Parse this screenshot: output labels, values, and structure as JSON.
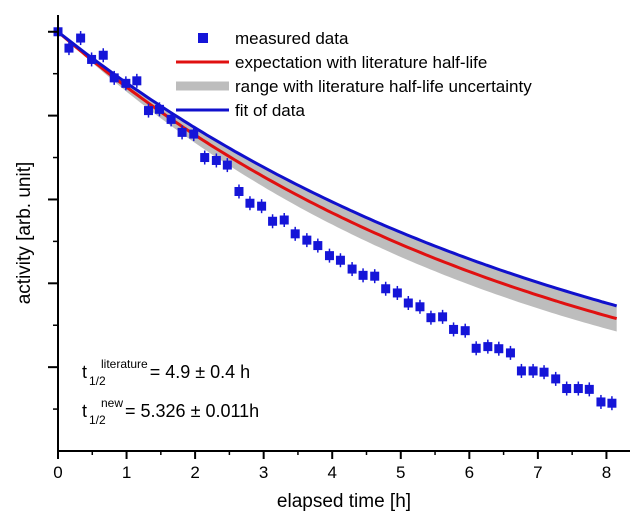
{
  "chart_data": {
    "type": "scatter",
    "title": "",
    "xlabel": "elapsed time [h]",
    "ylabel": "activity [arb. unit]",
    "xlim": [
      0,
      8.3
    ],
    "ylim": [
      0,
      1.04
    ],
    "xticks": [
      "0",
      "1",
      "2",
      "3",
      "4",
      "5",
      "6",
      "7",
      "8"
    ],
    "y_tick_labels_shown": false,
    "grid": false,
    "legend_position": "top-right",
    "series": [
      {
        "name": "measured data",
        "kind": "markers",
        "color": "#1515d8",
        "x": [
          0.0,
          0.16,
          0.33,
          0.49,
          0.66,
          0.82,
          0.99,
          1.15,
          1.32,
          1.48,
          1.65,
          1.81,
          1.98,
          2.14,
          2.31,
          2.47,
          2.64,
          2.8,
          2.97,
          3.13,
          3.3,
          3.46,
          3.63,
          3.79,
          3.96,
          4.12,
          4.29,
          4.45,
          4.62,
          4.78,
          4.95,
          5.11,
          5.28,
          5.44,
          5.61,
          5.77,
          5.94,
          6.1,
          6.27,
          6.43,
          6.6,
          6.76,
          6.93,
          7.09,
          7.26,
          7.42,
          7.59,
          7.75,
          7.92,
          8.08
        ],
        "y": [
          1.0,
          0.961,
          0.985,
          0.934,
          0.944,
          0.89,
          0.877,
          0.883,
          0.812,
          0.815,
          0.791,
          0.76,
          0.756,
          0.7,
          0.693,
          0.682,
          0.619,
          0.591,
          0.584,
          0.548,
          0.551,
          0.518,
          0.503,
          0.49,
          0.466,
          0.455,
          0.434,
          0.419,
          0.417,
          0.387,
          0.377,
          0.353,
          0.344,
          0.318,
          0.32,
          0.29,
          0.287,
          0.245,
          0.249,
          0.244,
          0.234,
          0.191,
          0.191,
          0.188,
          0.172,
          0.149,
          0.149,
          0.147,
          0.117,
          0.114
        ]
      },
      {
        "name": "expectation with literature half-life",
        "kind": "line",
        "color": "#e01010",
        "half_life_h": 4.9
      },
      {
        "name": "range with literature half-life uncertainty",
        "kind": "band",
        "color": "#bdbdbd",
        "half_life_low_h": 4.5,
        "half_life_high_h": 5.3
      },
      {
        "name": "fit of data",
        "kind": "line",
        "color": "#1010cc",
        "half_life_h": 5.326
      }
    ],
    "annotations": [
      {
        "pre": "t",
        "sub": "1/2",
        "sup": "literature",
        "post": " = 4.9 ± 0.4 h"
      },
      {
        "pre": "t",
        "sub": "1/2",
        "sup": "new",
        "post": " = 5.326 ± 0.011h"
      }
    ]
  }
}
